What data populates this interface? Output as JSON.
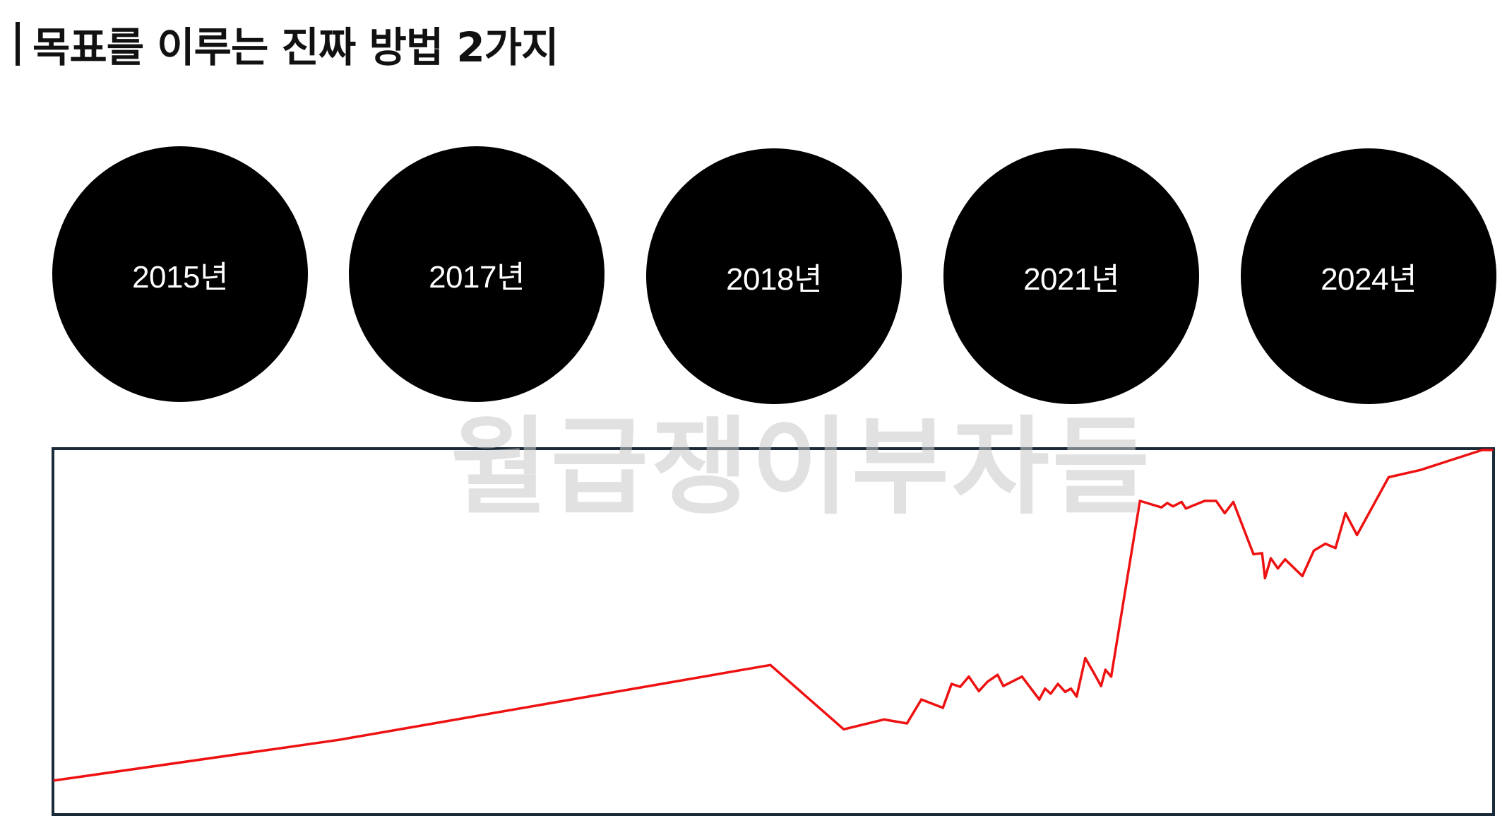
{
  "title": "목표를 이루는 진짜 방법 2가지",
  "milestones": [
    "2015년",
    "2017년",
    "2018년",
    "2021년",
    "2024년"
  ],
  "watermark": "월급쟁이부자들",
  "colors": {
    "circle": "#000000",
    "milestone_text": "#ffffff",
    "line": "#ee1111",
    "frame": "#1a2a38",
    "watermark": "#c8c8c8"
  },
  "chart_data": {
    "type": "line",
    "title": "",
    "xlabel": "",
    "ylabel": "",
    "xlim": [
      0,
      100
    ],
    "ylim": [
      0,
      100
    ],
    "grid": false,
    "series": [
      {
        "values": [
          [
            0.0,
            9.0
          ],
          [
            19.8,
            20.2
          ],
          [
            49.8,
            40.8
          ],
          [
            54.9,
            23.1
          ],
          [
            57.7,
            25.8
          ],
          [
            59.3,
            24.7
          ],
          [
            60.3,
            31.3
          ],
          [
            61.8,
            29.0
          ],
          [
            62.4,
            35.6
          ],
          [
            63.0,
            34.8
          ],
          [
            63.6,
            37.6
          ],
          [
            64.3,
            33.6
          ],
          [
            64.9,
            36.2
          ],
          [
            65.6,
            38.1
          ],
          [
            66.0,
            35.0
          ],
          [
            67.3,
            37.6
          ],
          [
            68.5,
            31.3
          ],
          [
            68.9,
            34.3
          ],
          [
            69.3,
            32.9
          ],
          [
            69.8,
            35.6
          ],
          [
            70.3,
            33.4
          ],
          [
            70.7,
            34.3
          ],
          [
            71.1,
            32.1
          ],
          [
            71.7,
            42.7
          ],
          [
            72.3,
            38.6
          ],
          [
            72.8,
            35.0
          ],
          [
            73.1,
            39.5
          ],
          [
            73.5,
            37.6
          ],
          [
            75.5,
            86.0
          ],
          [
            77.0,
            84.2
          ],
          [
            77.4,
            85.4
          ],
          [
            77.8,
            84.5
          ],
          [
            78.4,
            85.7
          ],
          [
            78.7,
            83.9
          ],
          [
            80.0,
            86.0
          ],
          [
            80.8,
            86.0
          ],
          [
            81.4,
            82.6
          ],
          [
            82.0,
            85.7
          ],
          [
            83.4,
            71.3
          ],
          [
            84.0,
            71.6
          ],
          [
            84.2,
            64.7
          ],
          [
            84.6,
            70.2
          ],
          [
            85.1,
            67.4
          ],
          [
            85.6,
            69.9
          ],
          [
            86.8,
            65.3
          ],
          [
            87.6,
            72.3
          ],
          [
            88.4,
            74.2
          ],
          [
            89.1,
            73.0
          ],
          [
            89.8,
            82.6
          ],
          [
            90.6,
            76.6
          ],
          [
            92.8,
            92.5
          ],
          [
            95.0,
            94.5
          ],
          [
            99.3,
            100.0
          ],
          [
            100.0,
            100.0
          ]
        ]
      }
    ]
  }
}
